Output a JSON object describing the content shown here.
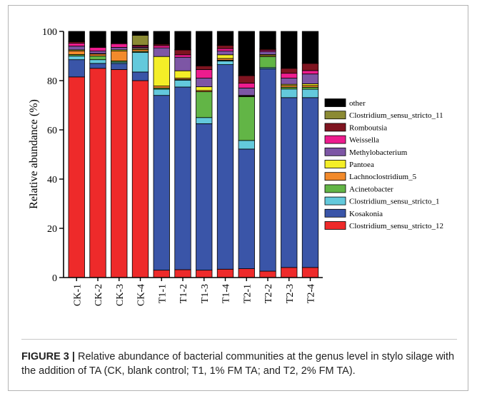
{
  "chart_data": {
    "type": "bar",
    "stacked": true,
    "title": "",
    "xlabel": "",
    "ylabel": "Relative abundance (%)",
    "ylim": [
      0,
      100
    ],
    "yticks": [
      0,
      20,
      40,
      60,
      80,
      100
    ],
    "categories": [
      "CK-1",
      "CK-2",
      "CK-3",
      "CK-4",
      "T1-1",
      "T1-2",
      "T1-3",
      "T1-4",
      "T2-1",
      "T2-2",
      "T2-3",
      "T2-4"
    ],
    "legend_position": "right",
    "series": [
      {
        "name": "Clostridium_sensu_stricto_12",
        "color": "#ee2a2a",
        "values": [
          81.5,
          85.0,
          84.5,
          80.0,
          3.0,
          3.2,
          3.0,
          3.4,
          3.6,
          2.6,
          4.1,
          4.1
        ]
      },
      {
        "name": "Kosakonia",
        "color": "#3a55a8",
        "values": [
          7.0,
          2.0,
          2.5,
          3.5,
          71.0,
          74.2,
          59.5,
          83.1,
          48.6,
          82.2,
          69.0,
          69.0
        ]
      },
      {
        "name": "Clostridium_sensu_stricto_1",
        "color": "#63c9dc",
        "values": [
          1.5,
          1.5,
          0.5,
          8.0,
          2.5,
          2.8,
          2.5,
          1.5,
          3.5,
          0.5,
          3.5,
          3.4
        ]
      },
      {
        "name": "Acinetobacter",
        "color": "#62b546",
        "values": [
          0.6,
          1.5,
          0.5,
          0.4,
          0.5,
          0.3,
          10.5,
          0.3,
          17.8,
          4.5,
          0.7,
          0.8
        ]
      },
      {
        "name": "Lachnoclostridium_5",
        "color": "#f28a2b",
        "values": [
          1.5,
          0.8,
          4.0,
          0.7,
          0.8,
          0.5,
          0.5,
          0.7,
          0.3,
          0.4,
          0.7,
          0.7
        ]
      },
      {
        "name": "Pantoea",
        "color": "#f4ee27",
        "values": [
          0.4,
          0.2,
          0.5,
          0.4,
          12.0,
          3.0,
          1.5,
          1.5,
          0.2,
          0.4,
          0.5,
          0.7
        ]
      },
      {
        "name": "Methylobacterium",
        "color": "#7d56a5",
        "values": [
          1.5,
          1.0,
          1.0,
          0.5,
          3.5,
          5.5,
          3.5,
          1.5,
          3.0,
          1.2,
          2.5,
          4.0
        ]
      },
      {
        "name": "Weissella",
        "color": "#ed1c8e",
        "values": [
          1.2,
          1.5,
          1.5,
          0.4,
          0.9,
          1.0,
          3.5,
          1.0,
          2.0,
          0.5,
          2.0,
          1.4
        ]
      },
      {
        "name": "Romboutsia",
        "color": "#7f1420",
        "values": [
          0.6,
          0.3,
          0.3,
          0.5,
          0.6,
          2.0,
          1.5,
          1.3,
          3.0,
          0.5,
          2.0,
          2.9
        ]
      },
      {
        "name": "Clostridium_sensu_stricto_11",
        "color": "#8b8a34",
        "values": [
          0.2,
          0.2,
          0.2,
          4.0,
          0.2,
          0.2,
          0.2,
          0.2,
          0.2,
          0.2,
          0.2,
          0.2
        ]
      },
      {
        "name": "other",
        "color": "#000000",
        "values": [
          4.0,
          6.0,
          4.5,
          1.6,
          5.0,
          7.3,
          13.8,
          5.5,
          17.8,
          7.0,
          14.8,
          12.8
        ]
      }
    ]
  },
  "caption": {
    "label": "FIGURE 3 |",
    "text": " Relative abundance of bacterial communities at the genus level in stylo silage with the addition of TA (CK, blank control; T1, 1% FM TA; and T2, 2% FM TA)."
  }
}
